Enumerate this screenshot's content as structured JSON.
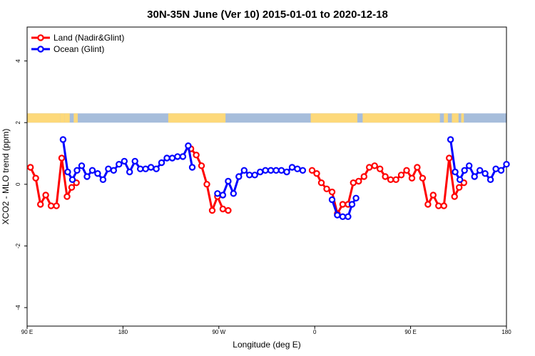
{
  "chart_data": {
    "type": "line",
    "title": "30N-35N June (Ver 10)   2015-01-01 to 2020-12-18",
    "xlabel": "Longitude (deg E)",
    "ylabel": "XCO2 - MLO trend (ppm)",
    "xlim": [
      90,
      450
    ],
    "ylim": [
      -4.6,
      5.1
    ],
    "x_ticks": [
      {
        "value": 90,
        "label": "90 E"
      },
      {
        "value": 162,
        "label": "180"
      },
      {
        "value": 234,
        "label": "90 W"
      },
      {
        "value": 306,
        "label": "0"
      },
      {
        "value": 378,
        "label": "90 E"
      },
      {
        "value": 450,
        "label": "180"
      }
    ],
    "y_ticks": [
      {
        "value": -4,
        "label": "-4"
      },
      {
        "value": -2,
        "label": "-2"
      },
      {
        "value": 0,
        "label": "0"
      },
      {
        "value": 2,
        "label": "2"
      },
      {
        "value": 4,
        "label": "4"
      }
    ],
    "legend": {
      "position": "top-left"
    },
    "series": [
      {
        "name": "Land (Nadir&Glint)",
        "color": "#ff0000",
        "segments": [
          [
            [
              92.5,
              0.55
            ],
            [
              96.5,
              0.2
            ],
            [
              100.0,
              -0.65
            ],
            [
              104.0,
              -0.35
            ],
            [
              108.0,
              -0.7
            ],
            [
              112.0,
              -0.7
            ],
            [
              116.0,
              0.85
            ],
            [
              120.0,
              -0.4
            ],
            [
              123.5,
              -0.1
            ],
            [
              127.0,
              0.05
            ]
          ],
          [
            [
              213.0,
              1.15
            ],
            [
              217.0,
              0.95
            ],
            [
              221.0,
              0.6
            ],
            [
              225.0,
              0.0
            ],
            [
              229.0,
              -0.85
            ],
            [
              233.0,
              -0.4
            ],
            [
              237.0,
              -0.8
            ],
            [
              241.0,
              -0.85
            ]
          ],
          [
            [
              304.0,
              0.45
            ],
            [
              307.5,
              0.35
            ],
            [
              311.0,
              0.05
            ],
            [
              315.0,
              -0.15
            ],
            [
              319.0,
              -0.25
            ],
            [
              323.0,
              -0.95
            ],
            [
              327.0,
              -0.65
            ],
            [
              331.0,
              -0.65
            ],
            [
              335.0,
              0.05
            ],
            [
              339.0,
              0.1
            ],
            [
              343.0,
              0.25
            ],
            [
              347.0,
              0.55
            ],
            [
              351.0,
              0.6
            ],
            [
              355.0,
              0.5
            ],
            [
              359.0,
              0.25
            ],
            [
              363.0,
              0.15
            ],
            [
              367.0,
              0.15
            ],
            [
              371.0,
              0.3
            ],
            [
              375.0,
              0.45
            ],
            [
              379.0,
              0.2
            ],
            [
              383.0,
              0.55
            ],
            [
              387.0,
              0.2
            ],
            [
              391.0,
              -0.65
            ],
            [
              395.0,
              -0.35
            ],
            [
              399.0,
              -0.7
            ],
            [
              403.0,
              -0.7
            ],
            [
              407.0,
              0.85
            ],
            [
              411.0,
              -0.4
            ],
            [
              414.5,
              -0.1
            ],
            [
              418.0,
              0.05
            ]
          ]
        ]
      },
      {
        "name": "Ocean (Glint)",
        "color": "#0000ff",
        "segments": [
          [
            [
              117.0,
              1.45
            ],
            [
              120.5,
              0.4
            ],
            [
              124.0,
              0.15
            ],
            [
              127.5,
              0.45
            ],
            [
              131.0,
              0.6
            ],
            [
              135.0,
              0.25
            ],
            [
              139.0,
              0.45
            ],
            [
              143.0,
              0.35
            ],
            [
              147.0,
              0.15
            ],
            [
              151.0,
              0.5
            ],
            [
              155.0,
              0.45
            ],
            [
              159.0,
              0.65
            ],
            [
              163.0,
              0.75
            ],
            [
              167.0,
              0.4
            ],
            [
              171.0,
              0.75
            ],
            [
              175.0,
              0.5
            ],
            [
              179.0,
              0.5
            ],
            [
              183.0,
              0.55
            ],
            [
              187.0,
              0.5
            ],
            [
              191.0,
              0.7
            ],
            [
              195.0,
              0.85
            ],
            [
              199.0,
              0.85
            ],
            [
              203.0,
              0.9
            ],
            [
              207.0,
              0.9
            ],
            [
              211.0,
              1.25
            ],
            [
              214.0,
              0.55
            ]
          ],
          [
            [
              233.0,
              -0.3
            ],
            [
              237.0,
              -0.35
            ],
            [
              241.0,
              0.1
            ],
            [
              245.0,
              -0.3
            ],
            [
              249.0,
              0.25
            ],
            [
              253.0,
              0.45
            ],
            [
              257.0,
              0.3
            ],
            [
              261.0,
              0.3
            ],
            [
              265.0,
              0.4
            ],
            [
              269.0,
              0.45
            ],
            [
              273.0,
              0.45
            ],
            [
              277.0,
              0.45
            ],
            [
              281.0,
              0.45
            ],
            [
              285.0,
              0.4
            ],
            [
              289.0,
              0.55
            ],
            [
              293.0,
              0.5
            ],
            [
              297.0,
              0.45
            ]
          ],
          [
            [
              319.0,
              -0.5
            ],
            [
              323.0,
              -1.0
            ],
            [
              327.0,
              -1.05
            ],
            [
              331.0,
              -1.05
            ],
            [
              334.0,
              -0.65
            ],
            [
              337.0,
              -0.45
            ]
          ],
          [
            [
              408.0,
              1.45
            ],
            [
              411.5,
              0.4
            ],
            [
              415.0,
              0.15
            ],
            [
              418.5,
              0.45
            ],
            [
              422.0,
              0.6
            ],
            [
              426.0,
              0.25
            ],
            [
              430.0,
              0.45
            ],
            [
              434.0,
              0.35
            ],
            [
              438.0,
              0.15
            ],
            [
              442.0,
              0.5
            ],
            [
              446.0,
              0.45
            ],
            [
              450.0,
              0.65
            ]
          ]
        ]
      }
    ],
    "land_mask": {
      "y_range": [
        2.0,
        2.3
      ],
      "ocean_color": "#a6bddb",
      "land_color": "#fdd97a",
      "land_intervals": [
        [
          90,
          115
        ],
        [
          115,
          118
        ],
        [
          118,
          122
        ],
        [
          125,
          128
        ],
        [
          196,
          239
        ],
        [
          303,
          338
        ],
        [
          342,
          400
        ],
        [
          403,
          406
        ],
        [
          409,
          414
        ],
        [
          416,
          418
        ]
      ]
    }
  }
}
